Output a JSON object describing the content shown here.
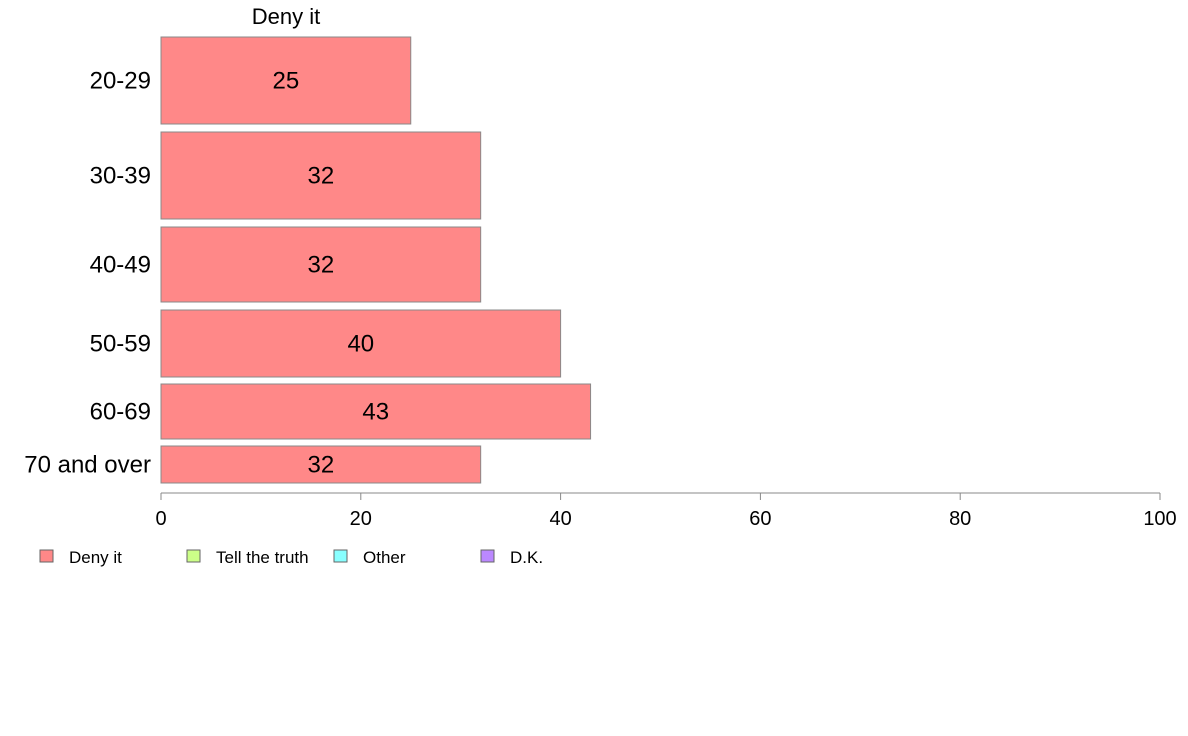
{
  "chart_data": {
    "type": "bar",
    "orientation": "horizontal",
    "series_title": "Deny it",
    "categories": [
      "20-29",
      "30-39",
      "40-49",
      "50-59",
      "60-69",
      "70 and over"
    ],
    "series": [
      {
        "name": "Deny it",
        "values": [
          25,
          32,
          32,
          40,
          43,
          32
        ],
        "color": "#ff8888"
      }
    ],
    "xlim": [
      0,
      100
    ],
    "xticks": [
      "0",
      "20",
      "40",
      "60",
      "80",
      "100"
    ],
    "grid": false,
    "legend": {
      "placement": "bottom-left",
      "entries": [
        {
          "label": "Deny it",
          "color": "#ff8888"
        },
        {
          "label": "Tell the truth",
          "color": "#ccff88"
        },
        {
          "label": "Other",
          "color": "#88ffff"
        },
        {
          "label": "D.K.",
          "color": "#bb88ff"
        }
      ]
    }
  }
}
